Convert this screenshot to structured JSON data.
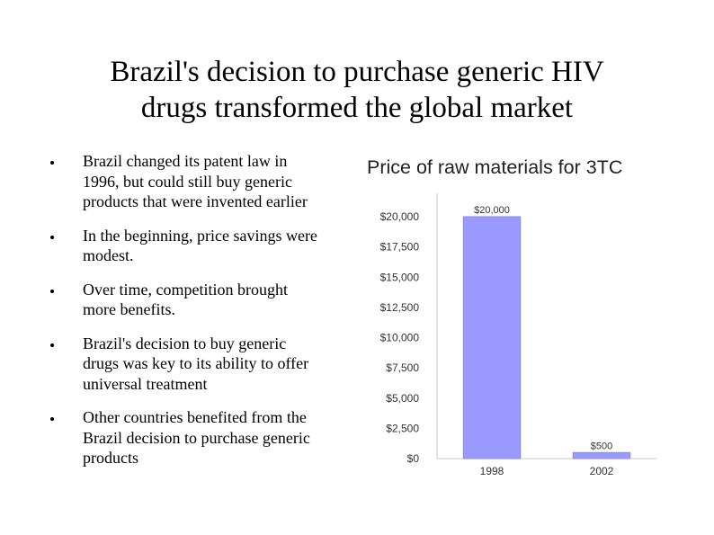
{
  "slide": {
    "title_line1": "Brazil's decision to purchase generic HIV",
    "title_line2": "drugs transformed the global market",
    "bullets": [
      [
        "Brazil changed its patent law in",
        "1996, but could still buy generic",
        "products that were invented earlier"
      ],
      [
        "In the beginning, price savings were",
        "modest."
      ],
      [
        "Over time, competition brought",
        "more benefits."
      ],
      [
        "Brazil's decision to buy generic",
        "drugs was key to its ability to offer",
        "universal treatment"
      ],
      [
        "Other countries benefited from the",
        "Brazil decision to purchase generic",
        "products"
      ]
    ]
  },
  "chart_data": {
    "type": "bar",
    "title": "Price of raw materials for 3TC",
    "categories": [
      "1998",
      "2002"
    ],
    "values": [
      20000,
      500
    ],
    "data_labels": [
      "$20,000",
      "$500"
    ],
    "ylim": [
      0,
      20000
    ],
    "yticks": [
      0,
      2500,
      5000,
      7500,
      10000,
      12500,
      15000,
      17500,
      20000
    ],
    "ytick_labels": [
      "$0",
      "$2,500",
      "$5,000",
      "$7,500",
      "$10,000",
      "$12,500",
      "$15,000",
      "$17,500",
      "$20,000"
    ],
    "bar_color": "#9999ff",
    "bar_edge_color": "#8a8ae6",
    "grid": false,
    "legend": "none"
  }
}
